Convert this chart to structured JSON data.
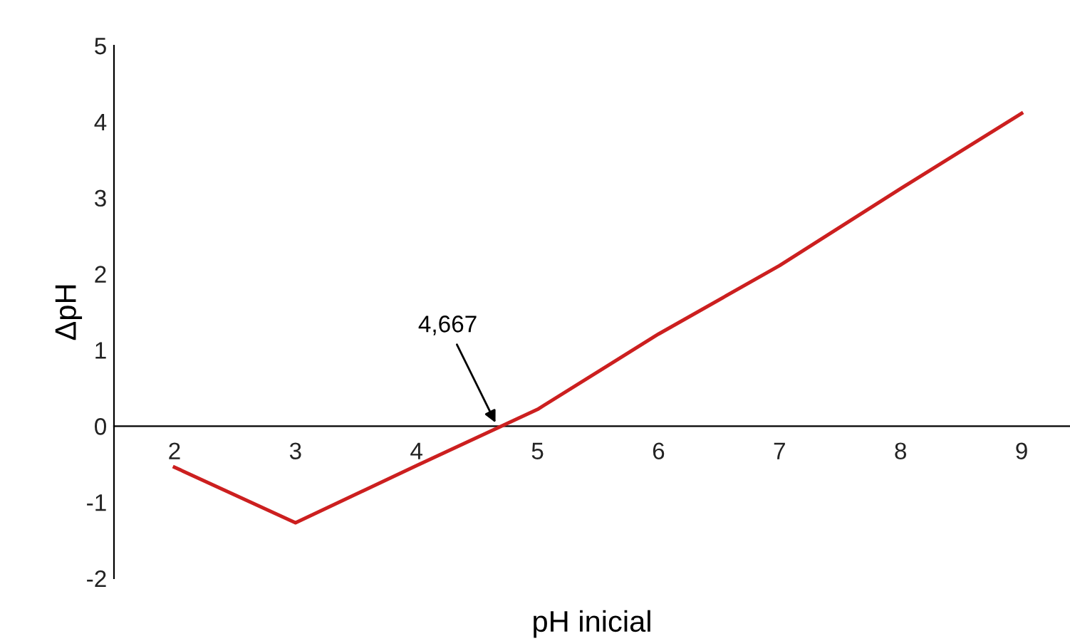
{
  "chart_data": {
    "type": "line",
    "xlabel": "pH inicial",
    "ylabel": "ΔpH",
    "x": [
      2,
      3,
      4,
      5,
      6,
      7,
      8,
      9
    ],
    "series": [
      {
        "color": "#cc1f1f",
        "values": [
          -0.54,
          -1.27,
          -0.52,
          0.22,
          1.21,
          2.11,
          3.12,
          4.11
        ]
      }
    ],
    "xlim": [
      1.5,
      9.4
    ],
    "ylim": [
      -2,
      5
    ],
    "xticks": [
      2,
      3,
      4,
      5,
      6,
      7,
      8,
      9
    ],
    "yticks": [
      -2,
      -1,
      0,
      1,
      2,
      3,
      4,
      5
    ],
    "annotations": [
      {
        "text": "4,667",
        "x": 4.667,
        "y": 0
      }
    ],
    "grid": false,
    "legend": false,
    "marker": "none",
    "line_style": "solid"
  }
}
